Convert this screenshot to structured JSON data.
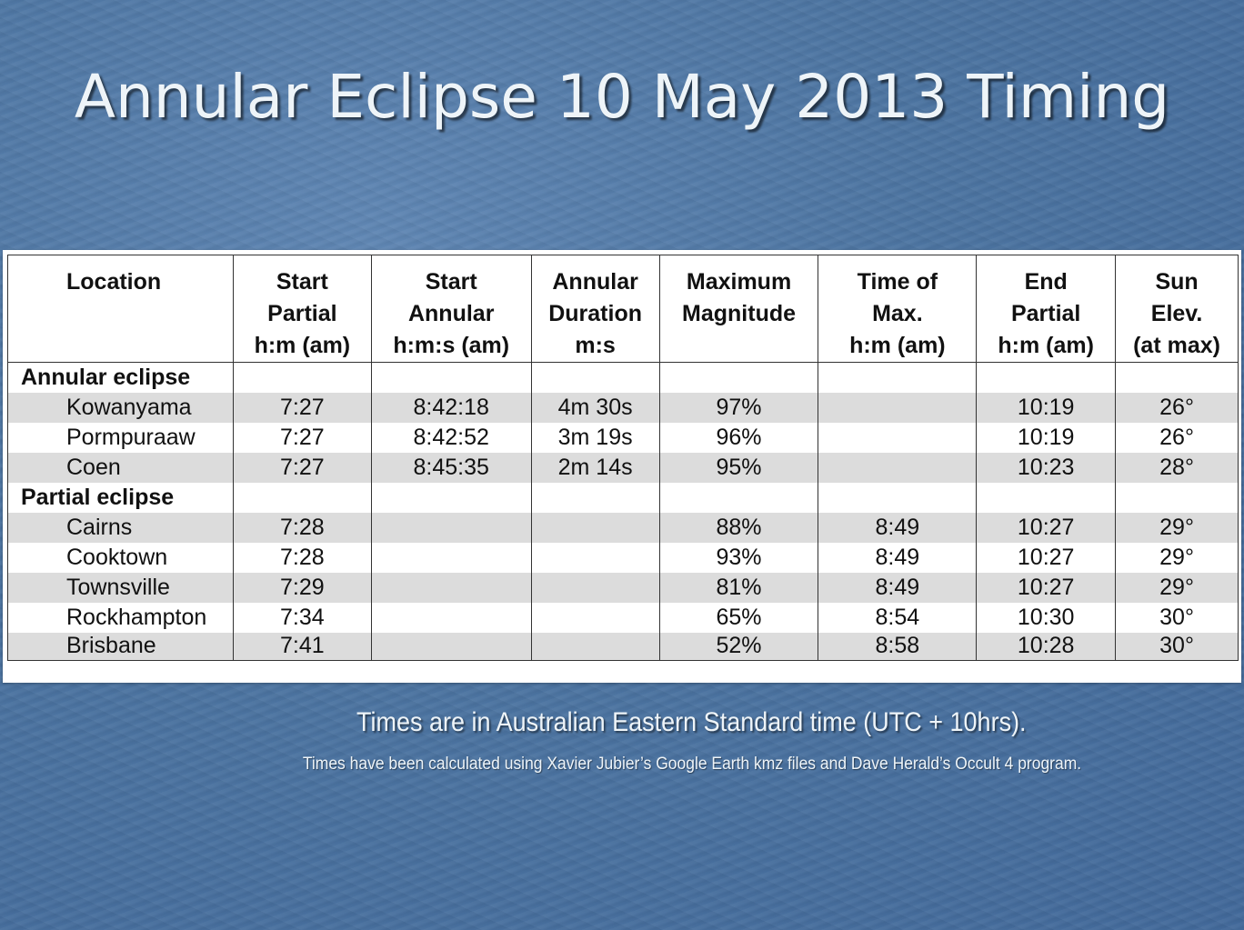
{
  "slide": {
    "title": "Annular Eclipse 10 May 2013 Timing",
    "note_main": "Times are in Australian Eastern Standard time (UTC + 10hrs).",
    "note_sub": "Times have been calculated using Xavier Jubier’s Google Earth kmz files and Dave Herald’s Occult 4 program."
  },
  "table": {
    "headers": [
      [
        "Location"
      ],
      [
        "Start",
        "Partial",
        "h:m (am)"
      ],
      [
        "Start",
        "Annular",
        "h:m:s (am)"
      ],
      [
        "Annular",
        "Duration",
        "m:s"
      ],
      [
        "Maximum",
        "Magnitude"
      ],
      [
        "Time of",
        "Max.",
        "h:m (am)"
      ],
      [
        "End",
        "Partial",
        "h:m (am)"
      ],
      [
        "Sun",
        "Elev.",
        "(at max)"
      ]
    ],
    "sections": [
      {
        "label": "Annular eclipse",
        "rows": [
          [
            "Kowanyama",
            "7:27",
            "8:42:18",
            "4m 30s",
            "97%",
            "",
            "10:19",
            "26°"
          ],
          [
            "Pormpuraaw",
            "7:27",
            "8:42:52",
            "3m 19s",
            "96%",
            "",
            "10:19",
            "26°"
          ],
          [
            "Coen",
            "7:27",
            "8:45:35",
            "2m 14s",
            "95%",
            "",
            "10:23",
            "28°"
          ]
        ]
      },
      {
        "label": "Partial eclipse",
        "rows": [
          [
            "Cairns",
            "7:28",
            "",
            "",
            "88%",
            "8:49",
            "10:27",
            "29°"
          ],
          [
            "Cooktown",
            "7:28",
            "",
            "",
            "93%",
            "8:49",
            "10:27",
            "29°"
          ],
          [
            "Townsville",
            "7:29",
            "",
            "",
            "81%",
            "8:49",
            "10:27",
            "29°"
          ],
          [
            "Rockhampton",
            "7:34",
            "",
            "",
            "65%",
            "8:54",
            "10:30",
            "30°"
          ],
          [
            "Brisbane",
            "7:41",
            "",
            "",
            "52%",
            "8:58",
            "10:28",
            "30°"
          ]
        ]
      }
    ]
  }
}
